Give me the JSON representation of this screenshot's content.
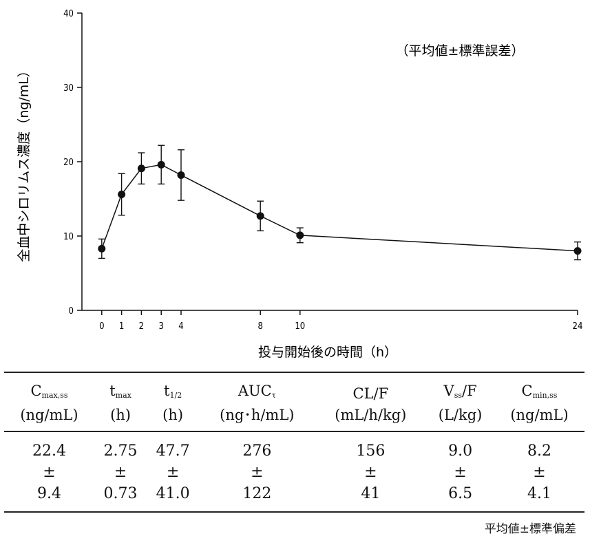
{
  "chart_data": {
    "type": "line",
    "xlabel": "投与開始後の時間（h）",
    "ylabel": "全血中シロリムス濃度（ng/mL）",
    "annotation": "（平均値±標準誤差）",
    "x_ticks": [
      0,
      1,
      2,
      3,
      4,
      8,
      10,
      24
    ],
    "y_ticks": [
      0,
      10,
      20,
      30,
      40
    ],
    "xlim": [
      -1,
      24
    ],
    "ylim": [
      0,
      40
    ],
    "grid": false,
    "series": [
      {
        "x": [
          0,
          1,
          2,
          3,
          4,
          8,
          10,
          24
        ],
        "y": [
          8.3,
          15.6,
          19.1,
          19.6,
          18.2,
          12.7,
          10.1,
          8.0
        ],
        "err": [
          1.3,
          2.8,
          2.1,
          2.6,
          3.4,
          2.0,
          1.0,
          1.2
        ]
      }
    ]
  },
  "table": {
    "headers": [
      {
        "name": "C",
        "sub": "max,ss",
        "unit": "(ng/mL)"
      },
      {
        "name": "t",
        "sub": "max",
        "unit": "(h)"
      },
      {
        "name": "t",
        "sub": "1/2",
        "unit": "(h)"
      },
      {
        "name": "AUC",
        "sub": "τ",
        "unit": "(ng･h/mL)"
      },
      {
        "name": "CL/F",
        "sub": "",
        "unit": "(mL/h/kg)"
      },
      {
        "name": "V",
        "sub": "ss",
        "unit": "/F",
        "unit2": "(L/kg)"
      },
      {
        "name": "C",
        "sub": "min,ss",
        "unit": "(ng/mL)"
      }
    ],
    "means": [
      "22.4",
      "2.75",
      "47.7",
      "276",
      "156",
      "9.0",
      "8.2"
    ],
    "pm": "±",
    "sds": [
      "9.4",
      "0.73",
      "41.0",
      "122",
      "41",
      "6.5",
      "4.1"
    ],
    "footnote": "平均値±標準偏差"
  }
}
